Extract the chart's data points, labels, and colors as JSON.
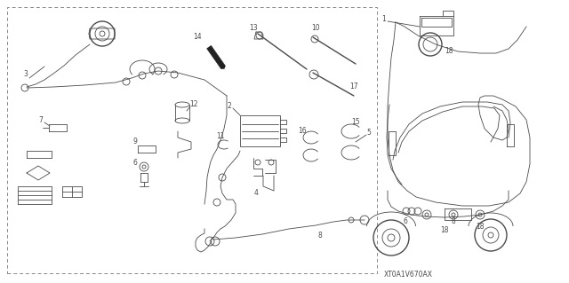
{
  "bg_color": "#ffffff",
  "diagram_ref": "XT0A1V670AX",
  "gray": "#4a4a4a",
  "lw_thin": 0.6,
  "lw_med": 1.0,
  "lw_thick": 1.8,
  "fs_label": 5.5,
  "fig_width": 6.4,
  "fig_height": 3.19,
  "dpi": 100
}
